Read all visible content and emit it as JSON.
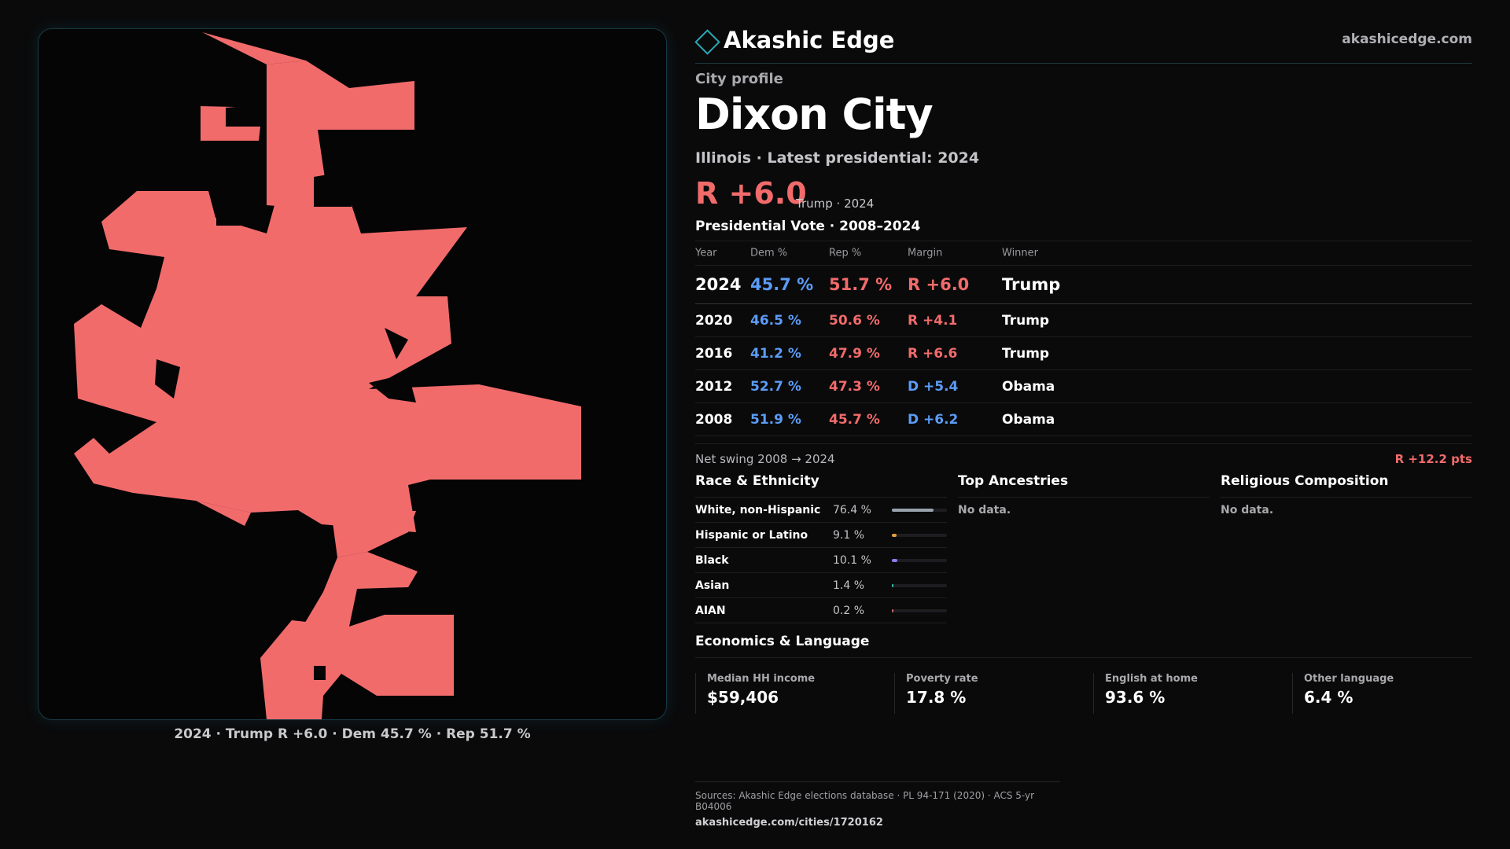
{
  "map": {
    "fill_color": "#f26b6b",
    "caption": "2024 · Trump R +6.0 · Dem 45.7 % · Rep 51.7 %"
  },
  "header": {
    "logo_icon": "diamond-icon",
    "brand": "Akashic Edge",
    "site": "akashicedge.com"
  },
  "profile": {
    "eyebrow": "City profile",
    "title": "Dixon City",
    "subtitle": "Illinois · Latest presidential: 2024",
    "margin": "R +6.0",
    "margin_note": "Trump · 2024"
  },
  "vote": {
    "heading": "Presidential Vote · 2008–2024",
    "columns": [
      "Year",
      "Dem %",
      "Rep %",
      "Margin",
      "Winner"
    ],
    "rows": [
      {
        "year": "2024",
        "dem": "45.7 %",
        "rep": "51.7 %",
        "margin": "R +6.0",
        "winner": "Trump",
        "party": "rep"
      },
      {
        "year": "2020",
        "dem": "46.5 %",
        "rep": "50.6 %",
        "margin": "R +4.1",
        "winner": "Trump",
        "party": "rep"
      },
      {
        "year": "2016",
        "dem": "41.2 %",
        "rep": "47.9 %",
        "margin": "R +6.6",
        "winner": "Trump",
        "party": "rep"
      },
      {
        "year": "2012",
        "dem": "52.7 %",
        "rep": "47.3 %",
        "margin": "D +5.4",
        "winner": "Obama",
        "party": "dem"
      },
      {
        "year": "2008",
        "dem": "51.9 %",
        "rep": "45.7 %",
        "margin": "D +6.2",
        "winner": "Obama",
        "party": "dem"
      }
    ],
    "swing_label": "Net swing 2008 → 2024",
    "swing_value": "R +12.2 pts"
  },
  "race": {
    "heading": "Race & Ethnicity",
    "rows": [
      {
        "label": "White, non-Hispanic",
        "pct": "76.4 %",
        "share": 0.764,
        "color": "#9aa3ad"
      },
      {
        "label": "Hispanic or Latino",
        "pct": "9.1 %",
        "share": 0.091,
        "color": "#e0a03a"
      },
      {
        "label": "Black",
        "pct": "10.1 %",
        "share": 0.101,
        "color": "#8d7cf0"
      },
      {
        "label": "Asian",
        "pct": "1.4 %",
        "share": 0.014,
        "color": "#3cb9a8"
      },
      {
        "label": "AIAN",
        "pct": "0.2 %",
        "share": 0.002,
        "color": "#c46a6a"
      }
    ]
  },
  "ancestries": {
    "heading": "Top Ancestries",
    "empty": "No data."
  },
  "religion": {
    "heading": "Religious Composition",
    "empty": "No data."
  },
  "economics": {
    "heading": "Economics & Language",
    "stats": [
      {
        "label": "Median HH income",
        "value": "$59,406"
      },
      {
        "label": "Poverty rate",
        "value": "17.8 %"
      },
      {
        "label": "English at home",
        "value": "93.6 %"
      },
      {
        "label": "Other language",
        "value": "6.4 %"
      }
    ]
  },
  "sources": {
    "text": "Sources: Akashic Edge elections database · PL 94-171 (2020) · ACS 5-yr B04006",
    "url": "akashicedge.com/cities/1720162"
  }
}
